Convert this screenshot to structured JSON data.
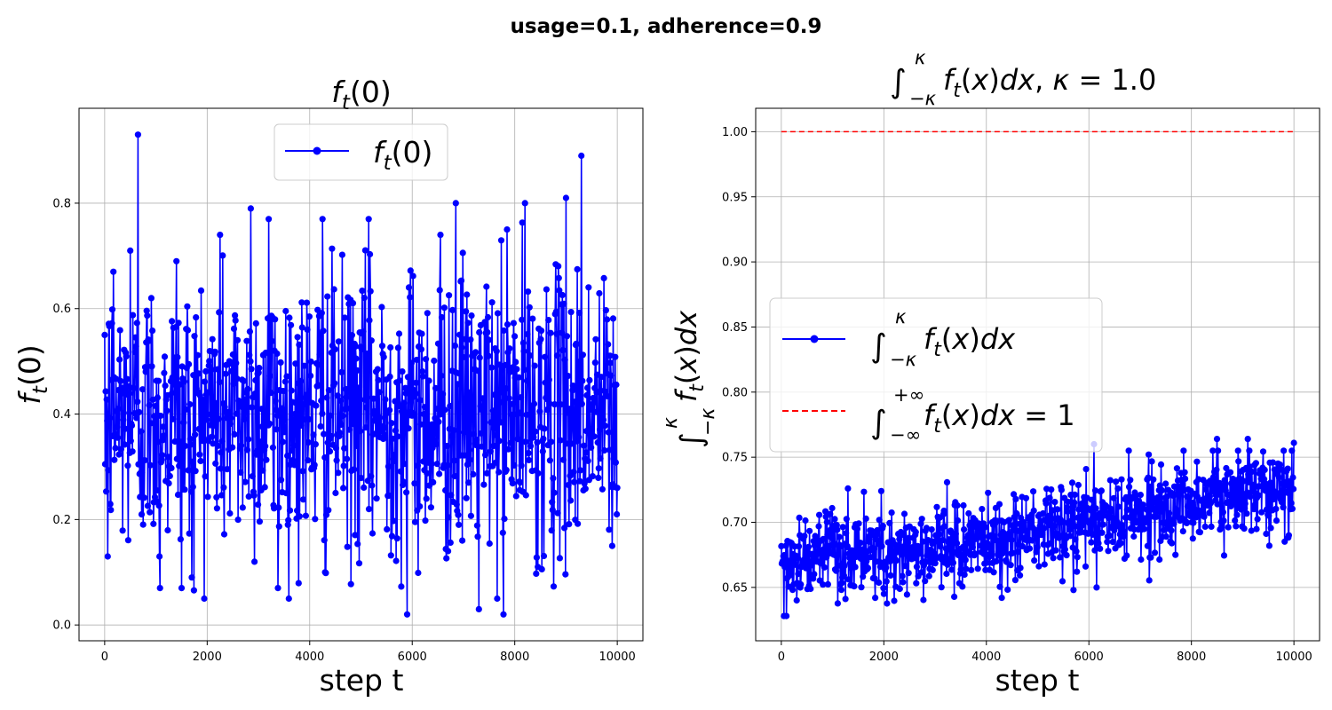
{
  "figure": {
    "suptitle": "usage=0.1, adherence=0.9"
  },
  "chart_data": [
    {
      "type": "line",
      "title_math": "f_t(0)",
      "xlabel": "step t",
      "ylabel_math": "f_t(0)",
      "xlim": [
        -500,
        10500
      ],
      "ylim": [
        -0.03,
        0.98
      ],
      "xticks": [
        0,
        2000,
        4000,
        6000,
        8000,
        10000
      ],
      "yticks": [
        0.0,
        0.2,
        0.4,
        0.6,
        0.8
      ],
      "ytick_labels": [
        "0.0",
        "0.2",
        "0.4",
        "0.6",
        "0.8"
      ],
      "grid": true,
      "legend_location": "upper center",
      "series": [
        {
          "legend_label": "f_t(0)",
          "color": "#0000ff",
          "style": "solid line with circle markers",
          "x_range": [
            0,
            10000
          ],
          "approx_points": 1000,
          "mean_level": 0.4,
          "typical_band": [
            0.22,
            0.62
          ],
          "notable_points": [
            {
              "x": 0,
              "y": 0.55
            },
            {
              "x": 60,
              "y": 0.13
            },
            {
              "x": 170,
              "y": 0.67
            },
            {
              "x": 500,
              "y": 0.71
            },
            {
              "x": 650,
              "y": 0.93
            },
            {
              "x": 1070,
              "y": 0.13
            },
            {
              "x": 1080,
              "y": 0.07
            },
            {
              "x": 1400,
              "y": 0.69
            },
            {
              "x": 1500,
              "y": 0.07
            },
            {
              "x": 1700,
              "y": 0.09
            },
            {
              "x": 2250,
              "y": 0.74
            },
            {
              "x": 2850,
              "y": 0.79
            },
            {
              "x": 3200,
              "y": 0.77
            },
            {
              "x": 3380,
              "y": 0.07
            },
            {
              "x": 4250,
              "y": 0.77
            },
            {
              "x": 4300,
              "y": 0.1
            },
            {
              "x": 5150,
              "y": 0.77
            },
            {
              "x": 5900,
              "y": 0.02
            },
            {
              "x": 6550,
              "y": 0.74
            },
            {
              "x": 6700,
              "y": 0.14
            },
            {
              "x": 6850,
              "y": 0.8
            },
            {
              "x": 7300,
              "y": 0.03
            },
            {
              "x": 7780,
              "y": 0.02
            },
            {
              "x": 7850,
              "y": 0.75
            },
            {
              "x": 8200,
              "y": 0.8
            },
            {
              "x": 8450,
              "y": 0.11
            },
            {
              "x": 9000,
              "y": 0.81
            },
            {
              "x": 9300,
              "y": 0.89
            },
            {
              "x": 9900,
              "y": 0.15
            },
            {
              "x": 10000,
              "y": 0.74
            },
            {
              "x": 10000,
              "y": 0.26
            }
          ]
        }
      ]
    },
    {
      "type": "line",
      "title_math": "∫_{-κ}^{κ} f_t(x)dx, κ = 1.0",
      "title_kappa_value": "1.0",
      "xlabel": "step t",
      "ylabel_math": "∫_{-κ}^{κ} f_t(x)dx",
      "xlim": [
        -500,
        10500
      ],
      "ylim": [
        0.609,
        1.018
      ],
      "xticks": [
        0,
        2000,
        4000,
        6000,
        8000,
        10000
      ],
      "yticks": [
        0.65,
        0.7,
        0.75,
        0.8,
        0.85,
        0.9,
        0.95,
        1.0
      ],
      "ytick_labels": [
        "0.65",
        "0.70",
        "0.75",
        "0.80",
        "0.85",
        "0.90",
        "0.95",
        "1.00"
      ],
      "grid": true,
      "legend_location": "center left",
      "series": [
        {
          "legend_label": "∫_{-κ}^{κ} f_t(x)dx",
          "color": "#0000ff",
          "style": "solid line with circle markers",
          "x_range": [
            0,
            10000
          ],
          "approx_points": 1000,
          "trend": [
            {
              "x": 0,
              "y": 0.672
            },
            {
              "x": 2000,
              "y": 0.675
            },
            {
              "x": 4000,
              "y": 0.685
            },
            {
              "x": 6000,
              "y": 0.7
            },
            {
              "x": 8000,
              "y": 0.715
            },
            {
              "x": 10000,
              "y": 0.732
            }
          ],
          "notable_points": [
            {
              "x": 50,
              "y": 0.628
            },
            {
              "x": 100,
              "y": 0.628
            },
            {
              "x": 1300,
              "y": 0.726
            },
            {
              "x": 1950,
              "y": 0.724
            },
            {
              "x": 4300,
              "y": 0.642
            },
            {
              "x": 5700,
              "y": 0.648
            },
            {
              "x": 6100,
              "y": 0.76
            },
            {
              "x": 6150,
              "y": 0.65
            },
            {
              "x": 8500,
              "y": 0.764
            },
            {
              "x": 9100,
              "y": 0.764
            },
            {
              "x": 9900,
              "y": 0.69
            },
            {
              "x": 10000,
              "y": 0.761
            }
          ]
        },
        {
          "legend_label": "∫_{-∞}^{+∞} f_t(x)dx = 1",
          "color": "#ff0000",
          "style": "dashed",
          "x": [
            0,
            10000
          ],
          "y": [
            1.0,
            1.0
          ]
        }
      ]
    }
  ]
}
